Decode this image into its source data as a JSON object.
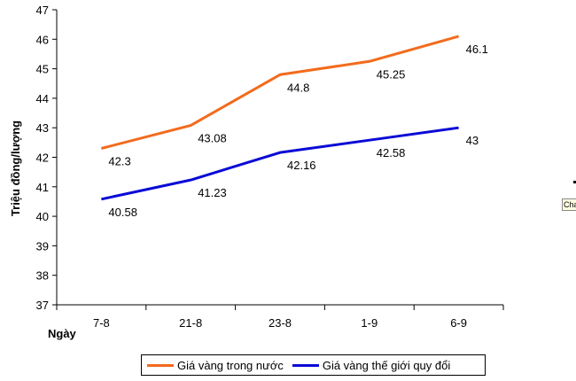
{
  "chart_data": {
    "type": "line",
    "title": "",
    "xlabel": "Ngày",
    "ylabel": "Triệu đồng/lượng",
    "categories": [
      "7-8",
      "21-8",
      "23-8",
      "1-9",
      "6-9"
    ],
    "ylim": [
      37,
      47
    ],
    "yticks": [
      37,
      38,
      39,
      40,
      41,
      42,
      43,
      44,
      45,
      46,
      47
    ],
    "grid": false,
    "legend_position": "bottom",
    "series": [
      {
        "name": "Giá vàng trong nước",
        "color": "#f26b1d",
        "values": [
          42.3,
          43.08,
          44.8,
          45.25,
          46.1
        ],
        "labels": [
          "42.3",
          "43.08",
          "44.8",
          "45.25",
          "46.1"
        ]
      },
      {
        "name": "Giá vàng thế giới quy đổi",
        "color": "#0a0ad6",
        "values": [
          40.58,
          41.23,
          42.16,
          42.58,
          43
        ],
        "labels": [
          "40.58",
          "41.23",
          "42.16",
          "42.58",
          "43"
        ]
      }
    ]
  },
  "tooltip_text": "Cha"
}
